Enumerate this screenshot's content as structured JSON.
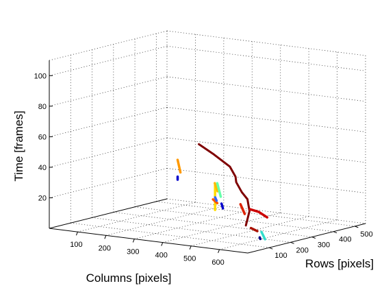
{
  "chart_data": {
    "type": "line3d",
    "xlabel": "Columns [pixels]",
    "ylabel": "Rows [pixels]",
    "zlabel": "Time [frames]",
    "x_ticks": [
      "100",
      "200",
      "300",
      "400",
      "500",
      "600"
    ],
    "y_ticks": [
      "100",
      "200",
      "300",
      "400",
      "500"
    ],
    "z_ticks": [
      "20",
      "40",
      "60",
      "80",
      "100"
    ],
    "xlim": [
      0,
      700
    ],
    "ylim": [
      0,
      550
    ],
    "zlim": [
      0,
      110
    ],
    "grid": true,
    "series": [
      {
        "color": "#7f0000",
        "x": [
          150,
          230,
          320,
          370,
          380,
          430,
          480,
          540,
          580
        ],
        "y": [
          500,
          460,
          420,
          380,
          370,
          330,
          290,
          220,
          150
        ],
        "z": [
          41,
          38,
          33,
          29,
          26,
          22,
          20,
          16,
          10
        ]
      },
      {
        "color": "#cc0000",
        "x": [
          610,
          625,
          640
        ],
        "y": [
          130,
          150,
          170
        ],
        "z": [
          22,
          20,
          16
        ]
      },
      {
        "color": "#aa1100",
        "x": [
          530,
          560
        ],
        "y": [
          240,
          230
        ],
        "z": [
          4,
          3
        ]
      },
      {
        "color": "#dd2200",
        "x": [
          410,
          440
        ],
        "y": [
          350,
          330
        ],
        "z": [
          13,
          8
        ]
      },
      {
        "color": "#ffdd00",
        "x": [
          260,
          260
        ],
        "y": [
          430,
          430
        ],
        "z": [
          20,
          3
        ]
      },
      {
        "color": "#ff9900",
        "x": [
          60,
          70
        ],
        "y": [
          520,
          520
        ],
        "z": [
          28,
          20
        ]
      },
      {
        "color": "#ffbb00",
        "x": [
          210,
          220
        ],
        "y": [
          495,
          495
        ],
        "z": [
          17,
          12
        ]
      },
      {
        "color": "#ff5500",
        "x": [
          200,
          230
        ],
        "y": [
          500,
          480
        ],
        "z": [
          6,
          5
        ]
      },
      {
        "color": "#66ffaa",
        "x": [
          230,
          250
        ],
        "y": [
          480,
          470
        ],
        "z": [
          18,
          10
        ]
      },
      {
        "color": "#33ddcc",
        "x": [
          620,
          640
        ],
        "y": [
          170,
          160
        ],
        "z": [
          6,
          2
        ]
      },
      {
        "color": "#0000cc",
        "x": [
          245,
          250
        ],
        "y": [
          480,
          480
        ],
        "z": [
          5,
          2
        ]
      },
      {
        "color": "#0000cc",
        "x": [
          60,
          60
        ],
        "y": [
          520,
          520
        ],
        "z": [
          17,
          15
        ]
      },
      {
        "color": "#3366ff",
        "x": [
          215,
          220
        ],
        "y": [
          490,
          490
        ],
        "z": [
          8,
          6
        ]
      },
      {
        "color": "#000088",
        "x": [
          610,
          612
        ],
        "y": [
          175,
          175
        ],
        "z": [
          2,
          1
        ]
      }
    ]
  }
}
